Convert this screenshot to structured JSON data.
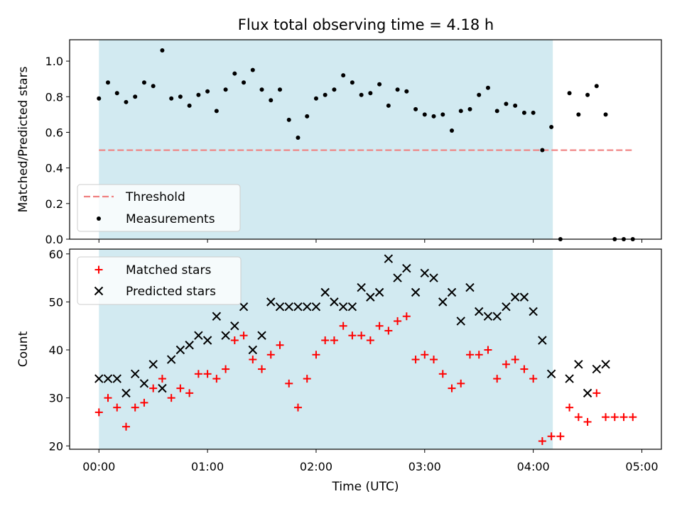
{
  "chart_data": [
    {
      "type": "scatter",
      "title": "Flux total observing time = 4.18 h",
      "xlabel": "",
      "ylabel": "Matched/Predicted stars",
      "xlim": [
        -0.27,
        5.18
      ],
      "ylim": [
        0,
        1.12
      ],
      "yticks": [
        "0.0",
        "0.2",
        "0.4",
        "0.6",
        "0.8",
        "1.0"
      ],
      "shaded_span_hours": [
        0,
        4.18
      ],
      "shade_color": "#add8e6",
      "threshold": {
        "name": "Threshold",
        "value": 0.5,
        "x_range": [
          0,
          4.93
        ],
        "color": "#f08080"
      },
      "legend": [
        "Threshold",
        "Measurements"
      ],
      "legend_position": "lower left",
      "series": [
        {
          "name": "Measurements",
          "marker": "dot",
          "color": "#000000",
          "x": [
            0,
            0.0833,
            0.1667,
            0.25,
            0.3333,
            0.4167,
            0.5,
            0.5833,
            0.6667,
            0.75,
            0.8333,
            0.9167,
            1.0,
            1.0833,
            1.1667,
            1.25,
            1.3333,
            1.4167,
            1.5,
            1.5833,
            1.6667,
            1.75,
            1.8333,
            1.9167,
            2.0,
            2.0833,
            2.1667,
            2.25,
            2.3333,
            2.4167,
            2.5,
            2.5833,
            2.6667,
            2.75,
            2.8333,
            2.9167,
            3.0,
            3.0833,
            3.1667,
            3.25,
            3.3333,
            3.4167,
            3.5,
            3.5833,
            3.6667,
            3.75,
            3.8333,
            3.9167,
            4.0,
            4.0833,
            4.1667,
            4.25,
            4.3333,
            4.4167,
            4.5,
            4.5833,
            4.6667,
            4.75,
            4.8333,
            4.9167
          ],
          "y": [
            0.79,
            0.88,
            0.82,
            0.77,
            0.8,
            0.88,
            0.86,
            1.06,
            0.79,
            0.8,
            0.75,
            0.81,
            0.83,
            0.72,
            0.84,
            0.93,
            0.88,
            0.95,
            0.84,
            0.78,
            0.84,
            0.67,
            0.57,
            0.69,
            0.79,
            0.81,
            0.84,
            0.92,
            0.88,
            0.81,
            0.82,
            0.87,
            0.75,
            0.84,
            0.83,
            0.73,
            0.7,
            0.69,
            0.7,
            0.61,
            0.72,
            0.73,
            0.81,
            0.85,
            0.72,
            0.76,
            0.75,
            0.71,
            0.71,
            0.5,
            0.63,
            0.0,
            0.82,
            0.7,
            0.81,
            0.86,
            0.7,
            0.0,
            0.0,
            0.0
          ]
        }
      ]
    },
    {
      "type": "scatter",
      "title": "",
      "xlabel": "Time (UTC)",
      "ylabel": "Count",
      "xlim": [
        -0.27,
        5.18
      ],
      "ylim": [
        19.3,
        61
      ],
      "yticks": [
        "20",
        "30",
        "40",
        "50",
        "60"
      ],
      "xticks": [
        "00:00",
        "01:00",
        "02:00",
        "03:00",
        "04:00",
        "05:00"
      ],
      "shaded_span_hours": [
        0,
        4.18
      ],
      "shade_color": "#add8e6",
      "legend": [
        "Matched stars",
        "Predicted stars"
      ],
      "legend_position": "upper left",
      "series": [
        {
          "name": "Matched stars",
          "marker": "plus",
          "color": "#ff0000",
          "x": [
            0,
            0.0833,
            0.1667,
            0.25,
            0.3333,
            0.4167,
            0.5,
            0.5833,
            0.6667,
            0.75,
            0.8333,
            0.9167,
            1.0,
            1.0833,
            1.1667,
            1.25,
            1.3333,
            1.4167,
            1.5,
            1.5833,
            1.6667,
            1.75,
            1.8333,
            1.9167,
            2.0,
            2.0833,
            2.1667,
            2.25,
            2.3333,
            2.4167,
            2.5,
            2.5833,
            2.6667,
            2.75,
            2.8333,
            2.9167,
            3.0,
            3.0833,
            3.1667,
            3.25,
            3.3333,
            3.4167,
            3.5,
            3.5833,
            3.6667,
            3.75,
            3.8333,
            3.9167,
            4.0,
            4.0833,
            4.1667,
            4.25,
            4.3333,
            4.4167,
            4.5,
            4.5833,
            4.6667,
            4.75,
            4.8333,
            4.9167
          ],
          "y": [
            27,
            30,
            28,
            24,
            28,
            29,
            32,
            34,
            30,
            32,
            31,
            35,
            35,
            34,
            36,
            42,
            43,
            38,
            36,
            39,
            41,
            33,
            28,
            34,
            39,
            42,
            42,
            45,
            43,
            43,
            42,
            45,
            44,
            46,
            47,
            38,
            39,
            38,
            35,
            32,
            33,
            39,
            39,
            40,
            34,
            37,
            38,
            36,
            34,
            21,
            22,
            22,
            28,
            26,
            25,
            31,
            26,
            26,
            26,
            26
          ]
        },
        {
          "name": "Predicted stars",
          "marker": "x",
          "color": "#000000",
          "x": [
            0,
            0.0833,
            0.1667,
            0.25,
            0.3333,
            0.4167,
            0.5,
            0.5833,
            0.6667,
            0.75,
            0.8333,
            0.9167,
            1.0,
            1.0833,
            1.1667,
            1.25,
            1.3333,
            1.4167,
            1.5,
            1.5833,
            1.6667,
            1.75,
            1.8333,
            1.9167,
            2.0,
            2.0833,
            2.1667,
            2.25,
            2.3333,
            2.4167,
            2.5,
            2.5833,
            2.6667,
            2.75,
            2.8333,
            2.9167,
            3.0,
            3.0833,
            3.1667,
            3.25,
            3.3333,
            3.4167,
            3.5,
            3.5833,
            3.6667,
            3.75,
            3.8333,
            3.9167,
            4.0,
            4.0833,
            4.1667,
            4.3333,
            4.4167,
            4.5,
            4.5833,
            4.6667
          ],
          "y": [
            34,
            34,
            34,
            31,
            35,
            33,
            37,
            32,
            38,
            40,
            41,
            43,
            42,
            47,
            43,
            45,
            49,
            40,
            43,
            50,
            49,
            49,
            49,
            49,
            49,
            52,
            50,
            49,
            49,
            53,
            51,
            52,
            59,
            55,
            57,
            52,
            56,
            55,
            50,
            52,
            46,
            53,
            48,
            47,
            47,
            49,
            51,
            51,
            48,
            42,
            35,
            34,
            37,
            31,
            36,
            37
          ]
        }
      ]
    }
  ]
}
